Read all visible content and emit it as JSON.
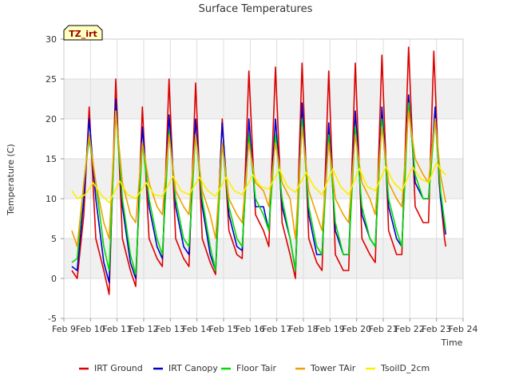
{
  "chart_data": {
    "type": "line",
    "title": "Surface Temperatures",
    "xlabel": "Time",
    "ylabel": "Temperature (C)",
    "badge": "TZ_irt",
    "xlim": [
      9,
      24
    ],
    "ylim": [
      -5,
      30
    ],
    "x_ticks": [
      {
        "v": 9,
        "label": "Feb 9"
      },
      {
        "v": 10,
        "label": "Feb 10"
      },
      {
        "v": 11,
        "label": "Feb 11"
      },
      {
        "v": 12,
        "label": "Feb 12"
      },
      {
        "v": 13,
        "label": "Feb 13"
      },
      {
        "v": 14,
        "label": "Feb 14"
      },
      {
        "v": 15,
        "label": "Feb 15"
      },
      {
        "v": 16,
        "label": "Feb 16"
      },
      {
        "v": 17,
        "label": "Feb 17"
      },
      {
        "v": 18,
        "label": "Feb 18"
      },
      {
        "v": 19,
        "label": "Feb 19"
      },
      {
        "v": 20,
        "label": "Feb 20"
      },
      {
        "v": 21,
        "label": "Feb 21"
      },
      {
        "v": 22,
        "label": "Feb 22"
      },
      {
        "v": 23,
        "label": "Feb 23"
      },
      {
        "v": 24,
        "label": "Feb 24"
      }
    ],
    "y_ticks": [
      {
        "v": -5,
        "label": "-5"
      },
      {
        "v": 0,
        "label": "0"
      },
      {
        "v": 5,
        "label": "5"
      },
      {
        "v": 10,
        "label": "10"
      },
      {
        "v": 15,
        "label": "15"
      },
      {
        "v": 20,
        "label": "20"
      },
      {
        "v": 25,
        "label": "25"
      },
      {
        "v": 30,
        "label": "30"
      }
    ],
    "bands": [
      [
        0,
        5
      ],
      [
        10,
        15
      ],
      [
        20,
        25
      ]
    ],
    "series": [
      {
        "name": "IRT Ground",
        "color": "#dd0000",
        "points": [
          [
            9.3,
            1.0
          ],
          [
            9.5,
            0.0
          ],
          [
            9.75,
            8.0
          ],
          [
            9.95,
            21.5
          ],
          [
            10.2,
            5.0
          ],
          [
            10.5,
            1.0
          ],
          [
            10.7,
            -2.0
          ],
          [
            10.95,
            25.0
          ],
          [
            11.2,
            5.0
          ],
          [
            11.5,
            1.0
          ],
          [
            11.7,
            -1.0
          ],
          [
            11.95,
            21.5
          ],
          [
            12.2,
            5.0
          ],
          [
            12.5,
            2.5
          ],
          [
            12.7,
            1.5
          ],
          [
            12.95,
            25.0
          ],
          [
            13.2,
            5.0
          ],
          [
            13.5,
            2.5
          ],
          [
            13.7,
            1.5
          ],
          [
            13.95,
            24.5
          ],
          [
            14.2,
            5.0
          ],
          [
            14.5,
            2.0
          ],
          [
            14.7,
            0.5
          ],
          [
            14.95,
            20.0
          ],
          [
            15.2,
            6.0
          ],
          [
            15.5,
            3.0
          ],
          [
            15.7,
            2.5
          ],
          [
            15.95,
            26.0
          ],
          [
            16.2,
            8.0
          ],
          [
            16.5,
            6.0
          ],
          [
            16.7,
            4.0
          ],
          [
            16.95,
            26.5
          ],
          [
            17.2,
            7.0
          ],
          [
            17.5,
            3.0
          ],
          [
            17.7,
            0.0
          ],
          [
            17.95,
            27.0
          ],
          [
            18.2,
            5.0
          ],
          [
            18.5,
            2.0
          ],
          [
            18.7,
            1.0
          ],
          [
            18.95,
            26.0
          ],
          [
            19.2,
            3.0
          ],
          [
            19.5,
            1.0
          ],
          [
            19.7,
            1.0
          ],
          [
            19.95,
            27.0
          ],
          [
            20.2,
            5.0
          ],
          [
            20.5,
            3.0
          ],
          [
            20.7,
            2.0
          ],
          [
            20.95,
            28.0
          ],
          [
            21.2,
            6.0
          ],
          [
            21.5,
            3.0
          ],
          [
            21.7,
            3.0
          ],
          [
            21.95,
            29.0
          ],
          [
            22.2,
            9.0
          ],
          [
            22.5,
            7.0
          ],
          [
            22.7,
            7.0
          ],
          [
            22.9,
            28.5
          ],
          [
            23.1,
            12.0
          ],
          [
            23.3,
            5.0
          ],
          [
            23.35,
            4.0
          ]
        ]
      },
      {
        "name": "IRT Canopy",
        "color": "#0000cc",
        "points": [
          [
            9.3,
            1.5
          ],
          [
            9.5,
            1.0
          ],
          [
            9.75,
            10.0
          ],
          [
            9.95,
            20.0
          ],
          [
            10.2,
            10.0
          ],
          [
            10.5,
            2.0
          ],
          [
            10.7,
            -0.5
          ],
          [
            10.95,
            22.5
          ],
          [
            11.2,
            9.0
          ],
          [
            11.5,
            2.0
          ],
          [
            11.7,
            0.0
          ],
          [
            11.95,
            19.0
          ],
          [
            12.2,
            9.0
          ],
          [
            12.5,
            4.0
          ],
          [
            12.7,
            2.5
          ],
          [
            12.95,
            20.5
          ],
          [
            13.2,
            9.0
          ],
          [
            13.5,
            4.0
          ],
          [
            13.7,
            3.0
          ],
          [
            13.95,
            20.0
          ],
          [
            14.2,
            9.0
          ],
          [
            14.5,
            3.0
          ],
          [
            14.7,
            1.0
          ],
          [
            14.95,
            19.5
          ],
          [
            15.2,
            8.0
          ],
          [
            15.5,
            4.0
          ],
          [
            15.7,
            3.5
          ],
          [
            15.95,
            20.0
          ],
          [
            16.2,
            9.0
          ],
          [
            16.5,
            9.0
          ],
          [
            16.7,
            6.0
          ],
          [
            16.95,
            20.0
          ],
          [
            17.2,
            9.0
          ],
          [
            17.5,
            5.0
          ],
          [
            17.7,
            1.0
          ],
          [
            17.95,
            22.0
          ],
          [
            18.2,
            8.0
          ],
          [
            18.5,
            3.0
          ],
          [
            18.7,
            3.0
          ],
          [
            18.95,
            19.5
          ],
          [
            19.2,
            6.0
          ],
          [
            19.5,
            3.0
          ],
          [
            19.7,
            3.0
          ],
          [
            19.95,
            21.0
          ],
          [
            20.2,
            8.0
          ],
          [
            20.5,
            5.0
          ],
          [
            20.7,
            4.0
          ],
          [
            20.95,
            21.5
          ],
          [
            21.2,
            9.0
          ],
          [
            21.5,
            5.0
          ],
          [
            21.7,
            4.0
          ],
          [
            21.95,
            23.0
          ],
          [
            22.2,
            12.0
          ],
          [
            22.5,
            10.0
          ],
          [
            22.7,
            10.0
          ],
          [
            22.95,
            21.5
          ],
          [
            23.15,
            10.0
          ],
          [
            23.35,
            5.5
          ]
        ]
      },
      {
        "name": "Floor Tair",
        "color": "#00dd00",
        "points": [
          [
            9.3,
            2.0
          ],
          [
            9.5,
            2.5
          ],
          [
            9.75,
            12.0
          ],
          [
            9.95,
            17.5
          ],
          [
            10.2,
            12.0
          ],
          [
            10.5,
            4.0
          ],
          [
            10.7,
            1.0
          ],
          [
            10.95,
            21.0
          ],
          [
            11.2,
            10.0
          ],
          [
            11.5,
            3.0
          ],
          [
            11.7,
            0.5
          ],
          [
            11.95,
            17.0
          ],
          [
            12.2,
            10.0
          ],
          [
            12.5,
            5.0
          ],
          [
            12.7,
            3.0
          ],
          [
            12.95,
            18.5
          ],
          [
            13.2,
            10.0
          ],
          [
            13.5,
            5.0
          ],
          [
            13.7,
            4.0
          ],
          [
            13.95,
            18.0
          ],
          [
            14.2,
            10.0
          ],
          [
            14.5,
            4.0
          ],
          [
            14.7,
            1.0
          ],
          [
            14.95,
            17.0
          ],
          [
            15.2,
            9.0
          ],
          [
            15.5,
            5.0
          ],
          [
            15.7,
            4.0
          ],
          [
            15.95,
            18.0
          ],
          [
            16.2,
            10.0
          ],
          [
            16.5,
            8.0
          ],
          [
            16.7,
            6.0
          ],
          [
            16.95,
            18.0
          ],
          [
            17.2,
            10.0
          ],
          [
            17.5,
            5.0
          ],
          [
            17.7,
            1.0
          ],
          [
            17.95,
            20.0
          ],
          [
            18.2,
            9.0
          ],
          [
            18.5,
            4.0
          ],
          [
            18.7,
            3.0
          ],
          [
            18.95,
            18.0
          ],
          [
            19.2,
            7.0
          ],
          [
            19.5,
            3.0
          ],
          [
            19.7,
            3.0
          ],
          [
            19.95,
            19.0
          ],
          [
            20.2,
            9.0
          ],
          [
            20.5,
            5.0
          ],
          [
            20.7,
            4.0
          ],
          [
            20.95,
            20.0
          ],
          [
            21.2,
            10.0
          ],
          [
            21.5,
            6.0
          ],
          [
            21.7,
            4.0
          ],
          [
            21.95,
            22.0
          ],
          [
            22.2,
            13.0
          ],
          [
            22.5,
            10.0
          ],
          [
            22.7,
            10.0
          ],
          [
            22.95,
            20.0
          ],
          [
            23.15,
            11.0
          ],
          [
            23.35,
            6.0
          ]
        ]
      },
      {
        "name": "Tower TAir",
        "color": "#f0a000",
        "points": [
          [
            9.3,
            6.0
          ],
          [
            9.5,
            4.0
          ],
          [
            9.75,
            12.0
          ],
          [
            9.95,
            18.0
          ],
          [
            10.2,
            12.0
          ],
          [
            10.5,
            7.0
          ],
          [
            10.7,
            5.0
          ],
          [
            10.95,
            21.0
          ],
          [
            11.2,
            12.0
          ],
          [
            11.5,
            8.0
          ],
          [
            11.7,
            7.0
          ],
          [
            11.95,
            17.0
          ],
          [
            12.2,
            12.0
          ],
          [
            12.5,
            9.0
          ],
          [
            12.7,
            8.0
          ],
          [
            12.95,
            18.0
          ],
          [
            13.2,
            11.0
          ],
          [
            13.5,
            9.0
          ],
          [
            13.7,
            8.0
          ],
          [
            13.95,
            18.0
          ],
          [
            14.2,
            11.0
          ],
          [
            14.5,
            8.0
          ],
          [
            14.7,
            5.0
          ],
          [
            14.95,
            17.0
          ],
          [
            15.2,
            10.0
          ],
          [
            15.5,
            8.0
          ],
          [
            15.7,
            7.0
          ],
          [
            15.95,
            17.0
          ],
          [
            16.2,
            12.0
          ],
          [
            16.5,
            11.0
          ],
          [
            16.7,
            9.0
          ],
          [
            16.95,
            17.0
          ],
          [
            17.2,
            12.0
          ],
          [
            17.5,
            10.0
          ],
          [
            17.7,
            5.0
          ],
          [
            17.95,
            19.0
          ],
          [
            18.2,
            11.0
          ],
          [
            18.5,
            8.0
          ],
          [
            18.7,
            6.0
          ],
          [
            18.95,
            17.0
          ],
          [
            19.2,
            10.0
          ],
          [
            19.5,
            8.0
          ],
          [
            19.7,
            7.0
          ],
          [
            19.95,
            18.0
          ],
          [
            20.2,
            12.0
          ],
          [
            20.5,
            10.0
          ],
          [
            20.7,
            8.0
          ],
          [
            20.95,
            19.0
          ],
          [
            21.2,
            12.0
          ],
          [
            21.5,
            10.0
          ],
          [
            21.7,
            9.0
          ],
          [
            21.95,
            21.0
          ],
          [
            22.2,
            15.0
          ],
          [
            22.5,
            13.0
          ],
          [
            22.7,
            12.0
          ],
          [
            22.95,
            20.0
          ],
          [
            23.15,
            13.0
          ],
          [
            23.35,
            9.5
          ]
        ]
      },
      {
        "name": "TsoilD_2cm",
        "color": "#ffee00",
        "points": [
          [
            9.3,
            11.0
          ],
          [
            9.5,
            10.0
          ],
          [
            9.8,
            10.5
          ],
          [
            10.1,
            12.0
          ],
          [
            10.4,
            10.5
          ],
          [
            10.7,
            9.5
          ],
          [
            11.1,
            12.2
          ],
          [
            11.4,
            10.5
          ],
          [
            11.7,
            10.0
          ],
          [
            12.1,
            12.0
          ],
          [
            12.4,
            10.5
          ],
          [
            12.7,
            10.3
          ],
          [
            13.1,
            12.8
          ],
          [
            13.4,
            11.0
          ],
          [
            13.7,
            10.5
          ],
          [
            14.1,
            12.7
          ],
          [
            14.4,
            11.0
          ],
          [
            14.7,
            10.3
          ],
          [
            15.1,
            12.7
          ],
          [
            15.4,
            11.0
          ],
          [
            15.7,
            10.5
          ],
          [
            16.1,
            13.0
          ],
          [
            16.4,
            11.5
          ],
          [
            16.7,
            11.2
          ],
          [
            17.1,
            13.7
          ],
          [
            17.4,
            11.5
          ],
          [
            17.7,
            10.8
          ],
          [
            18.1,
            13.3
          ],
          [
            18.4,
            11.5
          ],
          [
            18.7,
            10.5
          ],
          [
            19.1,
            13.7
          ],
          [
            19.4,
            11.5
          ],
          [
            19.7,
            10.5
          ],
          [
            20.1,
            13.8
          ],
          [
            20.4,
            11.5
          ],
          [
            20.7,
            11.0
          ],
          [
            21.1,
            14.0
          ],
          [
            21.4,
            12.0
          ],
          [
            21.7,
            11.0
          ],
          [
            22.1,
            14.0
          ],
          [
            22.4,
            12.5
          ],
          [
            22.7,
            12.0
          ],
          [
            23.0,
            14.5
          ],
          [
            23.2,
            13.5
          ],
          [
            23.35,
            13.0
          ]
        ]
      }
    ]
  }
}
